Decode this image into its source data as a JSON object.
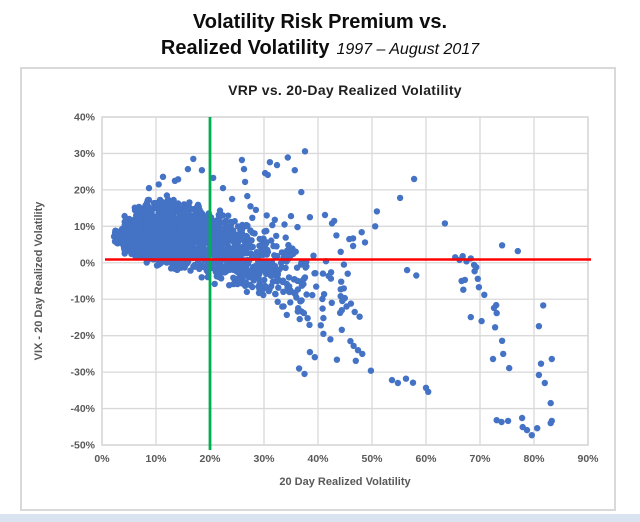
{
  "page": {
    "title_line1": "Volatility Risk Premium vs.",
    "title_line2_bold": "Realized Volatility",
    "title_line2_italic": "1997 – August 2017"
  },
  "chart_data": {
    "type": "scatter",
    "title": "VRP vs. 20-Day Realized Volatility",
    "xlabel": "20 Day Realized Volatility",
    "ylabel": "VIX - 20 Day Realized Volatility",
    "xlim": [
      0,
      90
    ],
    "ylim": [
      -50,
      40
    ],
    "x_tick_values": [
      0,
      10,
      20,
      30,
      40,
      50,
      60,
      70,
      80,
      90
    ],
    "x_tick_labels": [
      "0%",
      "10%",
      "20%",
      "30%",
      "40%",
      "50%",
      "60%",
      "70%",
      "80%",
      "90%"
    ],
    "y_tick_values": [
      40,
      30,
      20,
      10,
      0,
      -10,
      -20,
      -30,
      -40,
      -50
    ],
    "y_tick_labels": [
      "40%",
      "30%",
      "20%",
      "10%",
      "0%",
      "-10%",
      "-20%",
      "-30%",
      "-40%",
      "-50%"
    ],
    "grid": true,
    "legend": null,
    "colors": {
      "points": "#4472C4",
      "horizontal_line": "#FF0000",
      "vertical_line": "#00B050",
      "grid": "#D9D9D9",
      "axis_text": "#595959"
    },
    "reference_lines": [
      {
        "orientation": "horizontal",
        "value": 0.9,
        "color": "#FF0000"
      },
      {
        "orientation": "vertical",
        "value": 20,
        "color": "#00B050"
      }
    ],
    "outlier_points": [
      [
        8.7,
        20.5
      ],
      [
        10.5,
        21.5
      ],
      [
        11.3,
        23.6
      ],
      [
        13.5,
        22.5
      ],
      [
        14.1,
        22.9
      ],
      [
        15.9,
        25.7
      ],
      [
        16.9,
        28.5
      ],
      [
        18.5,
        25.4
      ],
      [
        20.6,
        23.3
      ],
      [
        22.4,
        20.5
      ],
      [
        24.1,
        17.5
      ],
      [
        25.9,
        28.2
      ],
      [
        26.3,
        25.7
      ],
      [
        26.5,
        22.2
      ],
      [
        26.9,
        18.3
      ],
      [
        30.2,
        24.6
      ],
      [
        30.7,
        24.1
      ],
      [
        31.1,
        27.6
      ],
      [
        32.4,
        26.8
      ],
      [
        34.4,
        28.9
      ],
      [
        35.7,
        25.4
      ],
      [
        36.9,
        19.4
      ],
      [
        37.6,
        30.6
      ],
      [
        27.5,
        15.5
      ],
      [
        28.5,
        14.5
      ],
      [
        30.5,
        13.0
      ],
      [
        32.0,
        11.8
      ],
      [
        33.8,
        10.5
      ],
      [
        35.0,
        12.8
      ],
      [
        36.2,
        9.8
      ],
      [
        38.5,
        12.5
      ],
      [
        41.3,
        13.1
      ],
      [
        42.6,
        10.8
      ],
      [
        43.4,
        7.5
      ],
      [
        43.0,
        11.5
      ],
      [
        44.2,
        3.0
      ],
      [
        44.8,
        -0.5
      ],
      [
        45.5,
        -3.0
      ],
      [
        44.3,
        -5.2
      ],
      [
        45.8,
        6.5
      ],
      [
        46.5,
        6.7
      ],
      [
        46.5,
        4.6
      ],
      [
        48.1,
        8.4
      ],
      [
        48.7,
        5.6
      ],
      [
        50.6,
        10.0
      ],
      [
        50.9,
        14.1
      ],
      [
        55.2,
        17.8
      ],
      [
        57.8,
        23.0
      ],
      [
        63.5,
        10.8
      ],
      [
        56.5,
        -2.0
      ],
      [
        58.2,
        -3.5
      ],
      [
        65.4,
        1.5
      ],
      [
        66.2,
        0.8
      ],
      [
        66.8,
        1.8
      ],
      [
        67.5,
        0.4
      ],
      [
        68.3,
        1.2
      ],
      [
        68.9,
        -0.6
      ],
      [
        69.3,
        -1.2
      ],
      [
        66.6,
        -5.0
      ],
      [
        66.9,
        -7.4
      ],
      [
        69.0,
        -2.3
      ],
      [
        69.6,
        -4.4
      ],
      [
        69.8,
        -6.7
      ],
      [
        70.8,
        -8.8
      ],
      [
        67.2,
        -4.7
      ],
      [
        74.1,
        4.8
      ],
      [
        77.0,
        3.2
      ],
      [
        68.3,
        -14.9
      ],
      [
        70.3,
        -16.0
      ],
      [
        72.6,
        -12.4
      ],
      [
        72.8,
        -17.7
      ],
      [
        73.0,
        -11.6
      ],
      [
        73.1,
        -13.8
      ],
      [
        72.4,
        -26.4
      ],
      [
        74.3,
        -25.0
      ],
      [
        74.1,
        -21.4
      ],
      [
        75.4,
        -28.9
      ],
      [
        81.7,
        -11.7
      ],
      [
        80.9,
        -17.4
      ],
      [
        81.3,
        -27.7
      ],
      [
        83.3,
        -26.4
      ],
      [
        80.9,
        -30.8
      ],
      [
        82.0,
        -33.0
      ],
      [
        83.1,
        -38.5
      ],
      [
        83.3,
        -43.4
      ],
      [
        83.1,
        -44.0
      ],
      [
        73.1,
        -43.2
      ],
      [
        74.0,
        -43.7
      ],
      [
        75.2,
        -43.4
      ],
      [
        77.8,
        -42.6
      ],
      [
        77.9,
        -45.1
      ],
      [
        78.7,
        -45.9
      ],
      [
        79.6,
        -47.3
      ],
      [
        80.6,
        -45.4
      ],
      [
        49.8,
        -29.6
      ],
      [
        53.7,
        -32.2
      ],
      [
        54.8,
        -33.0
      ],
      [
        56.3,
        -31.8
      ],
      [
        57.6,
        -32.9
      ],
      [
        60.0,
        -34.3
      ],
      [
        60.4,
        -35.4
      ],
      [
        44.4,
        -18.4
      ],
      [
        44.5,
        -10.5
      ],
      [
        45.3,
        -12.0
      ],
      [
        46.1,
        -11.2
      ],
      [
        46.8,
        -13.5
      ],
      [
        47.7,
        -14.8
      ],
      [
        46.0,
        -21.5
      ],
      [
        46.6,
        -22.8
      ],
      [
        47.4,
        -24.0
      ],
      [
        48.2,
        -25.0
      ],
      [
        47.0,
        -26.9
      ],
      [
        38.5,
        -24.5
      ],
      [
        39.4,
        -25.9
      ],
      [
        41.0,
        -19.5
      ],
      [
        42.3,
        -21.0
      ],
      [
        43.5,
        -26.6
      ],
      [
        36.5,
        -29.0
      ],
      [
        37.5,
        -30.5
      ]
    ],
    "dense_cloud": {
      "description": "Dense daily-observation cloud, 1997 - Aug 2017; x slices with [x_min, x_max, count, y_top, y_bottom], y drawn triangular within band",
      "seed": 20170831,
      "point_radius": 3.2,
      "slices": [
        [
          2,
          4,
          40,
          9.5,
          4.5
        ],
        [
          4,
          6,
          110,
          13,
          2
        ],
        [
          6,
          8,
          170,
          16,
          0.5
        ],
        [
          8,
          10,
          190,
          18,
          -1
        ],
        [
          10,
          12,
          190,
          19,
          -2
        ],
        [
          12,
          14,
          175,
          19,
          -3
        ],
        [
          14,
          16,
          155,
          18,
          -3.5
        ],
        [
          16,
          18,
          140,
          17.5,
          -4
        ],
        [
          18,
          20,
          125,
          16.5,
          -5
        ],
        [
          20,
          22,
          110,
          15.5,
          -6
        ],
        [
          22,
          24,
          95,
          14.5,
          -7
        ],
        [
          24,
          26,
          80,
          13.5,
          -8
        ],
        [
          26,
          28,
          66,
          12.5,
          -9.5
        ],
        [
          28,
          30,
          54,
          11.5,
          -11
        ],
        [
          30,
          33,
          50,
          10.5,
          -13
        ],
        [
          33,
          36,
          38,
          9,
          -16
        ],
        [
          36,
          40,
          28,
          7.5,
          -20
        ],
        [
          40,
          45,
          17,
          5,
          -23
        ]
      ]
    }
  }
}
